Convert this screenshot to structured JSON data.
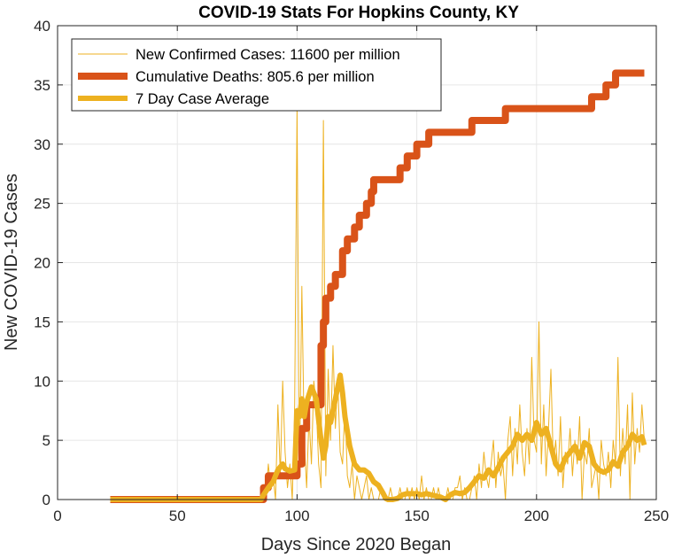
{
  "chart_data": {
    "type": "line",
    "title": "COVID-19 Stats For Hopkins County, KY",
    "xlabel": "Days Since 2020 Began",
    "ylabel": "New COVID-19 Cases",
    "xlim": [
      0,
      250
    ],
    "ylim": [
      0,
      40
    ],
    "xticks": [
      0,
      50,
      100,
      150,
      200,
      250
    ],
    "yticks": [
      0,
      5,
      10,
      15,
      20,
      25,
      30,
      35,
      40
    ],
    "grid": true,
    "legend_position": "top-left",
    "series": [
      {
        "name": "New Confirmed Cases: 11600 per million",
        "color": "#EDB120",
        "x": [
          22,
          60,
          85,
          86,
          87,
          88,
          89,
          90,
          91,
          92,
          93,
          94,
          95,
          96,
          97,
          98,
          99,
          100,
          101,
          102,
          103,
          104,
          105,
          106,
          107,
          108,
          109,
          110,
          111,
          112,
          113,
          114,
          115,
          116,
          117,
          118,
          119,
          120,
          121,
          122,
          123,
          124,
          125,
          126,
          127,
          128,
          129,
          130,
          131,
          132,
          133,
          134,
          135,
          136,
          137,
          138,
          139,
          140,
          141,
          142,
          143,
          144,
          145,
          146,
          147,
          148,
          149,
          150,
          151,
          152,
          153,
          154,
          155,
          156,
          157,
          158,
          159,
          160,
          161,
          162,
          163,
          164,
          165,
          166,
          167,
          168,
          169,
          170,
          171,
          172,
          173,
          174,
          175,
          176,
          177,
          178,
          179,
          180,
          181,
          182,
          183,
          184,
          185,
          186,
          187,
          188,
          189,
          190,
          191,
          192,
          193,
          194,
          195,
          196,
          197,
          198,
          199,
          200,
          201,
          202,
          203,
          204,
          205,
          206,
          207,
          208,
          209,
          210,
          211,
          212,
          213,
          214,
          215,
          216,
          217,
          218,
          219,
          220,
          221,
          222,
          223,
          224,
          225,
          226,
          227,
          228,
          229,
          230,
          231,
          232,
          233,
          234,
          235,
          236,
          237,
          238,
          239,
          240,
          241,
          242,
          243,
          244,
          245
        ],
        "y": [
          0,
          0,
          0,
          1,
          0,
          3,
          1,
          2,
          0,
          8,
          2,
          10,
          4,
          1,
          3,
          0,
          8,
          33,
          2,
          18,
          5,
          1,
          7,
          3,
          10,
          8,
          3,
          1,
          32,
          2,
          11,
          5,
          13,
          6,
          10,
          4,
          3,
          8,
          2,
          1,
          3,
          0,
          2,
          1,
          0,
          1,
          2,
          0,
          1,
          0,
          0,
          0,
          1,
          0,
          0,
          0,
          1,
          0,
          0,
          0,
          1,
          0,
          0,
          1,
          0,
          1,
          0,
          1,
          0,
          2,
          0,
          1,
          0,
          0,
          1,
          0,
          1,
          0,
          0,
          0,
          1,
          0,
          0,
          1,
          1,
          2,
          0,
          1,
          0,
          0,
          1,
          2,
          0,
          3,
          1,
          4,
          2,
          1,
          3,
          5,
          1,
          4,
          2,
          3,
          0,
          5,
          7,
          2,
          6,
          3,
          8,
          4,
          2,
          6,
          3,
          12,
          5,
          4,
          15,
          3,
          8,
          2,
          6,
          11,
          3,
          5,
          2,
          7,
          1,
          4,
          3,
          6,
          2,
          5,
          3,
          7,
          0,
          4,
          3,
          6,
          1,
          2,
          3,
          0,
          5,
          3,
          2,
          4,
          1,
          5,
          3,
          12,
          2,
          6,
          3,
          8,
          0,
          9,
          3,
          6,
          4,
          8,
          5
        ],
        "lineWidth": 1
      },
      {
        "name": "Cumulative Deaths: 805.6 per million",
        "color": "#D95319",
        "x": [
          22,
          85,
          86,
          88,
          90,
          96,
          98,
          100,
          102,
          104,
          106,
          108,
          110,
          111,
          112,
          113,
          114,
          116,
          118,
          119,
          121,
          123,
          124,
          126,
          127,
          129,
          131,
          132,
          134,
          137,
          139,
          140,
          143,
          144,
          145,
          146,
          148,
          150,
          151,
          153,
          155,
          162,
          164,
          170,
          173,
          174,
          176,
          181,
          187,
          188,
          190,
          220,
          223,
          227,
          229,
          231,
          233,
          236,
          245
        ],
        "y": [
          0,
          0,
          1,
          2,
          2,
          2,
          2,
          3,
          6,
          8,
          8,
          8,
          13,
          15,
          17,
          17,
          18,
          19,
          19,
          21,
          22,
          22,
          23,
          24,
          24,
          25,
          26,
          27,
          27,
          27,
          27,
          27,
          28,
          28,
          28,
          29,
          29,
          30,
          30,
          30,
          31,
          31,
          31,
          31,
          32,
          32,
          32,
          32,
          33,
          33,
          33,
          33,
          34,
          34,
          35,
          35,
          36,
          36,
          36
        ],
        "lineWidth": 8
      },
      {
        "name": "7 Day Case Average",
        "color": "#EDB120",
        "x": [
          22,
          85,
          86,
          87,
          88,
          90,
          92,
          94,
          95,
          97,
          99,
          100,
          101,
          102,
          103,
          104,
          106,
          108,
          110,
          111,
          112,
          113,
          114,
          116,
          117,
          118,
          119,
          120,
          122,
          124,
          126,
          128,
          130,
          132,
          134,
          136,
          137,
          138,
          140,
          142,
          144,
          146,
          148,
          150,
          152,
          154,
          156,
          158,
          160,
          162,
          163,
          164,
          166,
          168,
          170,
          172,
          174,
          176,
          178,
          180,
          182,
          184,
          186,
          188,
          190,
          192,
          194,
          196,
          198,
          200,
          202,
          204,
          206,
          208,
          210,
          212,
          214,
          216,
          218,
          220,
          222,
          224,
          226,
          228,
          230,
          232,
          234,
          236,
          238,
          240,
          242,
          244,
          245
        ],
        "y": [
          0,
          0,
          0.4,
          0.7,
          1,
          1.5,
          2.5,
          3,
          2.6,
          2.4,
          2.5,
          7.5,
          7,
          8.5,
          7,
          8.2,
          9.5,
          8.5,
          5,
          3.5,
          4.5,
          7,
          6.5,
          8.5,
          9.5,
          10.5,
          9,
          7,
          4.5,
          3,
          2.5,
          2.5,
          2.2,
          1.5,
          1.2,
          0.5,
          0.1,
          0,
          0,
          0.1,
          0.4,
          0.5,
          0.5,
          0.5,
          0.4,
          0.5,
          0.4,
          0.3,
          0.2,
          0,
          0.2,
          0.4,
          0.6,
          0.5,
          0.6,
          1,
          1.5,
          2,
          1.8,
          2.5,
          2,
          2.7,
          3.5,
          4,
          4.5,
          5.5,
          5,
          5.5,
          5,
          6.5,
          5.5,
          6,
          4.5,
          3,
          2.5,
          3.5,
          4,
          4.5,
          3.5,
          4.8,
          4.5,
          3,
          2.5,
          2.3,
          2.5,
          3.2,
          2.8,
          4,
          4.5,
          5.5,
          5,
          5.3,
          4.6
        ],
        "lineWidth": 6
      }
    ]
  }
}
